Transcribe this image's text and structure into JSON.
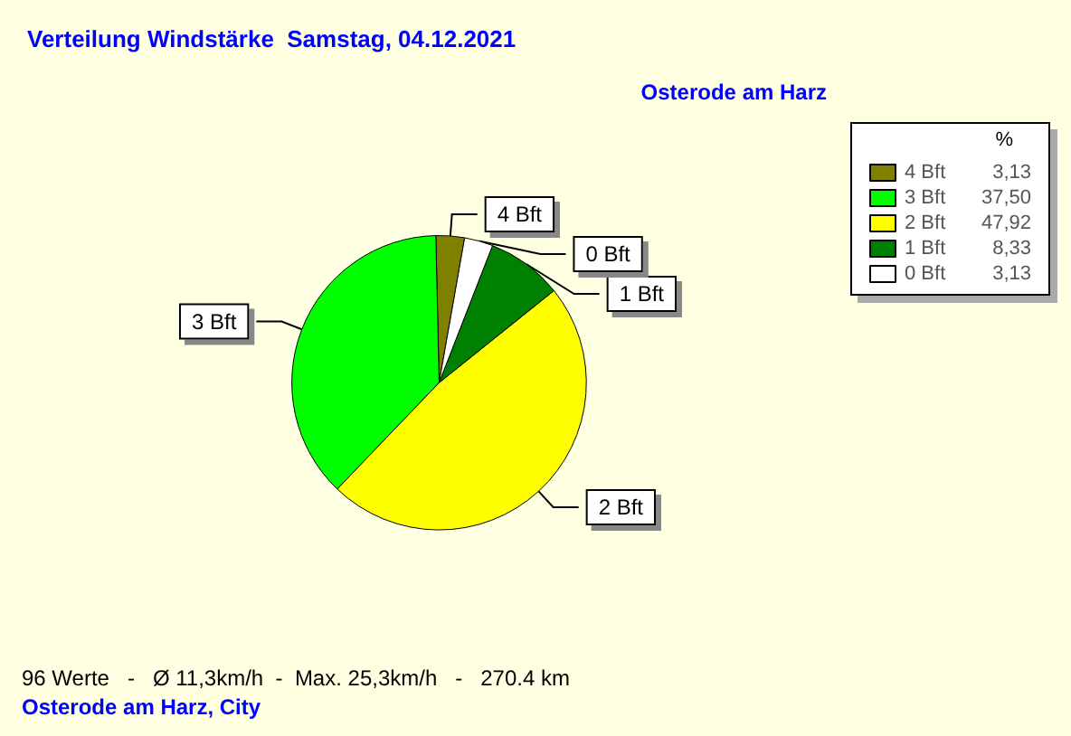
{
  "chart_data": {
    "type": "pie",
    "title": "Verteilung Windstärke  Samstag, 04.12.2021",
    "subtitle": "Osterode am Harz",
    "categories": [
      "4 Bft",
      "3 Bft",
      "2 Bft",
      "1 Bft",
      "0 Bft"
    ],
    "values": [
      3.13,
      37.5,
      47.92,
      8.33,
      3.13
    ],
    "value_labels": [
      "3,13",
      "37,50",
      "47,92",
      "8,33",
      "3,13"
    ],
    "colors": [
      "#808000",
      "#00ff00",
      "#ffff00",
      "#008000",
      "#ffffff"
    ],
    "legend": "top right",
    "legend_title": "%",
    "annotations": [
      "96 Werte   -   Ø 11,3km/h  -  Max. 25,3km/h   -   270.4 km",
      "Osterode am Harz, City"
    ]
  }
}
